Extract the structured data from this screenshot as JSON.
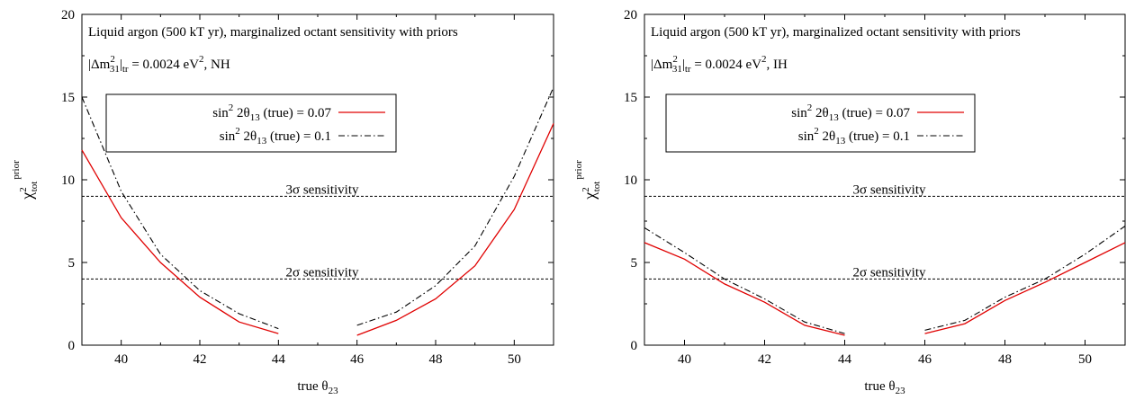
{
  "chart_data": [
    {
      "type": "line",
      "panel": "left",
      "annotation_main": "Liquid argon (500 kT yr), marginalized octant sensitivity with priors",
      "annotation_param": "|Δm²₃₁|tr = 0.0024 eV², NH",
      "annotation_param_parts": {
        "pre": "|Δm",
        "sup1": "2",
        "sub1": "31",
        "mid": "|",
        "sub2": "tr",
        "eq": " = 0.0024 eV",
        "sup2": "2",
        "post": ", NH"
      },
      "xlabel": "true θ23",
      "xlabel_parts": {
        "base": "true θ",
        "sub": "23"
      },
      "ylabel": "χ² tot prior",
      "ylabel_parts": {
        "base": "χ",
        "sup": "2",
        "sub": "tot",
        "sup2": "prior"
      },
      "xlim": [
        39,
        51
      ],
      "ylim": [
        0,
        20
      ],
      "xticks": [
        "40",
        "42",
        "44",
        "46",
        "48",
        "50"
      ],
      "yticks": [
        "0",
        "5",
        "10",
        "15",
        "20"
      ],
      "legend_position": "upper-left",
      "thresholds": [
        {
          "y": 9,
          "label": "3σ sensitivity"
        },
        {
          "y": 4,
          "label": "2σ sensitivity"
        }
      ],
      "series": [
        {
          "name": "sin² 2θ13 (true) = 0.07",
          "name_parts": {
            "pre": "sin",
            "sup": "2",
            "mid": " 2θ",
            "sub": "13",
            "post": " (true) = 0.07"
          },
          "color": "#e00000",
          "style": "solid",
          "segments": [
            [
              [
                39,
                11.8
              ],
              [
                40,
                7.7
              ],
              [
                41,
                5.0
              ],
              [
                42,
                2.9
              ],
              [
                43,
                1.4
              ],
              [
                44,
                0.7
              ]
            ],
            [
              [
                46,
                0.6
              ],
              [
                47,
                1.5
              ],
              [
                48,
                2.8
              ],
              [
                49,
                4.8
              ],
              [
                50,
                8.2
              ],
              [
                51,
                13.4
              ]
            ]
          ]
        },
        {
          "name": "sin² 2θ13 (true) = 0.1",
          "name_parts": {
            "pre": "sin",
            "sup": "2",
            "mid": " 2θ",
            "sub": "13",
            "post": " (true) = 0.1"
          },
          "color": "#000000",
          "style": "dash-dot",
          "segments": [
            [
              [
                39,
                15.0
              ],
              [
                40,
                9.3
              ],
              [
                41,
                5.5
              ],
              [
                42,
                3.3
              ],
              [
                43,
                1.9
              ],
              [
                44,
                1.0
              ]
            ],
            [
              [
                46,
                1.2
              ],
              [
                47,
                2.0
              ],
              [
                48,
                3.6
              ],
              [
                49,
                6.0
              ],
              [
                50,
                10.2
              ],
              [
                51,
                15.6
              ]
            ]
          ]
        }
      ]
    },
    {
      "type": "line",
      "panel": "right",
      "annotation_main": "Liquid argon (500 kT yr), marginalized octant sensitivity with priors",
      "annotation_param": "|Δm²₃₁|tr = 0.0024 eV², IH",
      "annotation_param_parts": {
        "pre": "|Δm",
        "sup1": "2",
        "sub1": "31",
        "mid": "|",
        "sub2": "tr",
        "eq": " = 0.0024 eV",
        "sup2": "2",
        "post": ", IH"
      },
      "xlabel": "true θ23",
      "xlabel_parts": {
        "base": "true θ",
        "sub": "23"
      },
      "ylabel": "χ² tot prior",
      "ylabel_parts": {
        "base": "χ",
        "sup": "2",
        "sub": "tot",
        "sup2": "prior"
      },
      "xlim": [
        39,
        51
      ],
      "ylim": [
        0,
        20
      ],
      "xticks": [
        "40",
        "42",
        "44",
        "46",
        "48",
        "50"
      ],
      "yticks": [
        "0",
        "5",
        "10",
        "15",
        "20"
      ],
      "legend_position": "upper-left",
      "thresholds": [
        {
          "y": 9,
          "label": "3σ sensitivity"
        },
        {
          "y": 4,
          "label": "2σ sensitivity"
        }
      ],
      "series": [
        {
          "name": "sin² 2θ13 (true) = 0.07",
          "name_parts": {
            "pre": "sin",
            "sup": "2",
            "mid": " 2θ",
            "sub": "13",
            "post": " (true) = 0.07"
          },
          "color": "#e00000",
          "style": "solid",
          "segments": [
            [
              [
                39,
                6.2
              ],
              [
                40,
                5.2
              ],
              [
                41,
                3.7
              ],
              [
                42,
                2.6
              ],
              [
                43,
                1.2
              ],
              [
                44,
                0.6
              ]
            ],
            [
              [
                46,
                0.7
              ],
              [
                47,
                1.3
              ],
              [
                48,
                2.7
              ],
              [
                49,
                3.8
              ],
              [
                50,
                5.0
              ],
              [
                51,
                6.2
              ]
            ]
          ]
        },
        {
          "name": "sin² 2θ13 (true) = 0.1",
          "name_parts": {
            "pre": "sin",
            "sup": "2",
            "mid": " 2θ",
            "sub": "13",
            "post": " (true) = 0.1"
          },
          "color": "#000000",
          "style": "dash-dot",
          "segments": [
            [
              [
                39,
                7.1
              ],
              [
                40,
                5.6
              ],
              [
                41,
                4.0
              ],
              [
                42,
                2.8
              ],
              [
                43,
                1.4
              ],
              [
                44,
                0.7
              ]
            ],
            [
              [
                46,
                0.9
              ],
              [
                47,
                1.5
              ],
              [
                48,
                2.9
              ],
              [
                49,
                4.0
              ],
              [
                50,
                5.5
              ],
              [
                51,
                7.2
              ]
            ]
          ]
        }
      ]
    }
  ]
}
